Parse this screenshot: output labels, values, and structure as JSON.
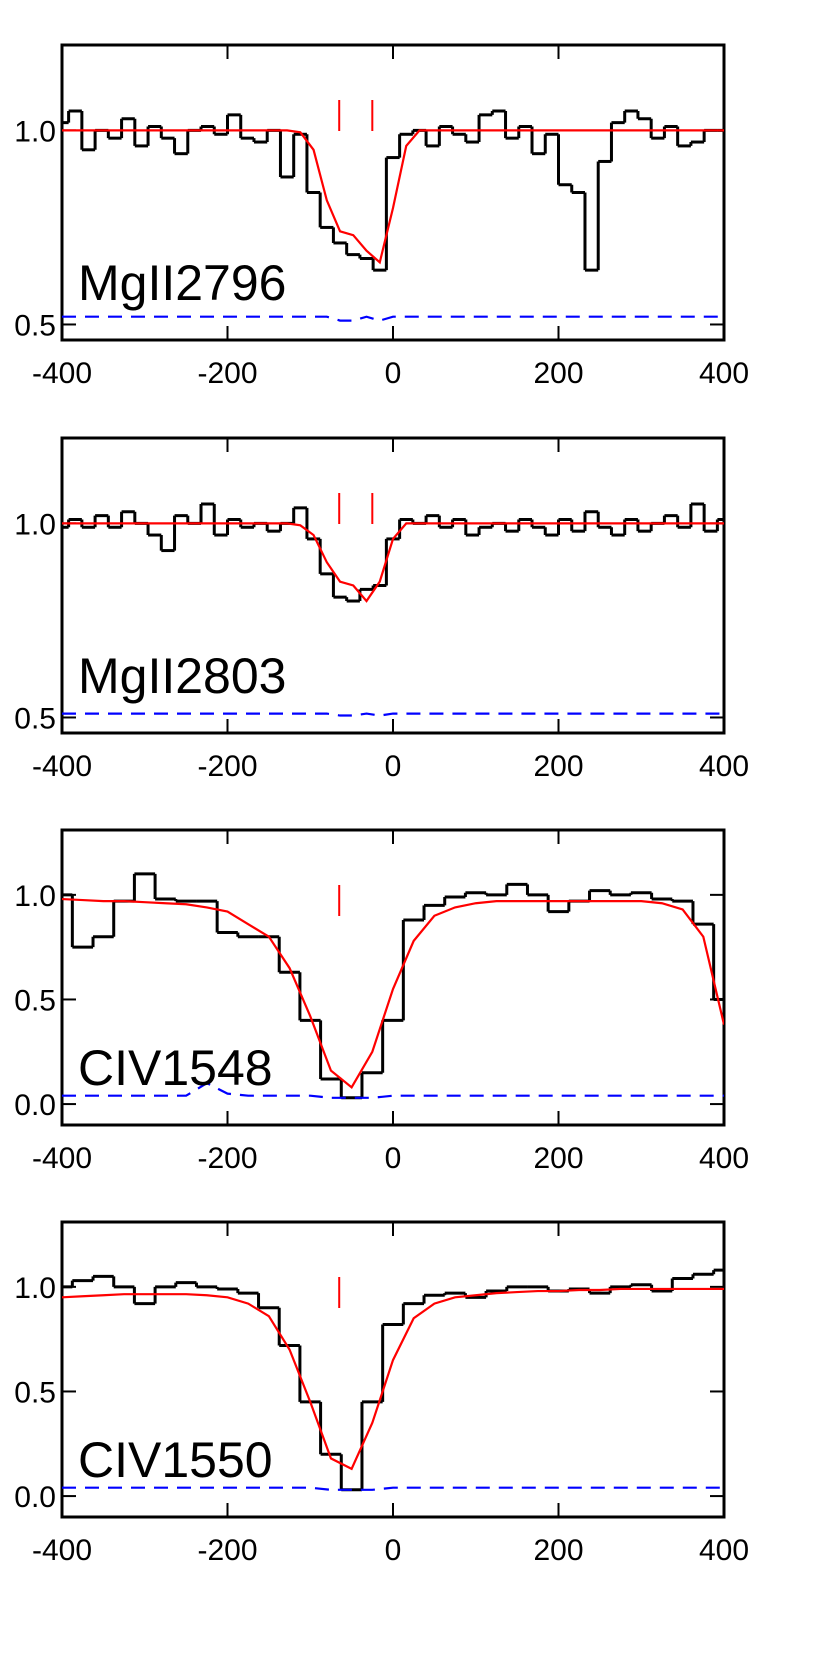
{
  "chart_data": [
    {
      "type": "line",
      "label": "MgII2796",
      "x": [
        -400,
        -384,
        -368,
        -352,
        -336,
        -320,
        -304,
        -288,
        -272,
        -256,
        -240,
        -224,
        -208,
        -192,
        -176,
        -160,
        -144,
        -128,
        -112,
        -96,
        -80,
        -64,
        -48,
        -32,
        -16,
        0,
        16,
        32,
        48,
        64,
        80,
        96,
        112,
        128,
        144,
        160,
        176,
        192,
        208,
        224,
        240,
        256,
        272,
        288,
        304,
        320,
        336,
        352,
        368,
        384,
        400
      ],
      "series": [
        {
          "color": "#000000",
          "style": "steps",
          "values": [
            1.02,
            1.05,
            0.95,
            1.0,
            0.98,
            1.03,
            0.96,
            1.01,
            0.98,
            0.94,
            1.0,
            1.01,
            0.99,
            1.04,
            0.98,
            0.97,
            1.0,
            0.88,
            0.99,
            0.84,
            0.75,
            0.71,
            0.68,
            0.67,
            0.64,
            0.93,
            0.99,
            1.0,
            0.96,
            1.01,
            0.99,
            0.97,
            1.04,
            1.05,
            0.98,
            1.01,
            0.94,
            0.99,
            0.86,
            0.84,
            0.64,
            0.92,
            1.02,
            1.05,
            1.03,
            0.98,
            1.01,
            0.96,
            0.97,
            1.0,
            1.0
          ]
        },
        {
          "color": "#ff0000",
          "style": "solid",
          "values": [
            1.0,
            1.0,
            1.0,
            1.0,
            1.0,
            1.0,
            1.0,
            1.0,
            1.0,
            1.0,
            1.0,
            1.0,
            1.0,
            1.0,
            1.0,
            1.0,
            1.0,
            1.0,
            0.995,
            0.95,
            0.82,
            0.74,
            0.73,
            0.69,
            0.66,
            0.8,
            0.96,
            1.0,
            1.0,
            1.0,
            1.0,
            1.0,
            1.0,
            1.0,
            1.0,
            1.0,
            1.0,
            1.0,
            1.0,
            1.0,
            1.0,
            1.0,
            1.0,
            1.0,
            1.0,
            1.0,
            1.0,
            1.0,
            1.0,
            1.0,
            1.0
          ]
        },
        {
          "color": "#0000ff",
          "style": "dashed",
          "values": [
            0.52,
            0.52,
            0.52,
            0.52,
            0.52,
            0.52,
            0.52,
            0.52,
            0.52,
            0.52,
            0.52,
            0.52,
            0.52,
            0.52,
            0.52,
            0.52,
            0.52,
            0.52,
            0.52,
            0.52,
            0.52,
            0.51,
            0.51,
            0.52,
            0.51,
            0.52,
            0.52,
            0.52,
            0.52,
            0.52,
            0.52,
            0.52,
            0.52,
            0.52,
            0.52,
            0.52,
            0.52,
            0.52,
            0.52,
            0.52,
            0.52,
            0.52,
            0.52,
            0.52,
            0.52,
            0.52,
            0.52,
            0.52,
            0.52,
            0.52,
            0.52
          ]
        }
      ],
      "components": [
        -65,
        -25
      ],
      "xlim": [
        -400,
        400
      ],
      "xticks": [
        -400,
        -200,
        0,
        200,
        400
      ],
      "ylim": [
        0.46,
        1.22
      ],
      "yticks": [
        0.5,
        {
          "value": 1.0,
          "label": "1.0"
        }
      ]
    },
    {
      "type": "line",
      "label": "MgII2803",
      "x": [
        -400,
        -384,
        -368,
        -352,
        -336,
        -320,
        -304,
        -288,
        -272,
        -256,
        -240,
        -224,
        -208,
        -192,
        -176,
        -160,
        -144,
        -128,
        -112,
        -96,
        -80,
        -64,
        -48,
        -32,
        -16,
        0,
        16,
        32,
        48,
        64,
        80,
        96,
        112,
        128,
        144,
        160,
        176,
        192,
        208,
        224,
        240,
        256,
        272,
        288,
        304,
        320,
        336,
        352,
        368,
        384,
        400
      ],
      "series": [
        {
          "color": "#000000",
          "style": "steps",
          "values": [
            0.99,
            1.01,
            0.99,
            1.02,
            0.99,
            1.03,
            1.0,
            0.97,
            0.93,
            1.02,
            1.0,
            1.05,
            0.97,
            1.01,
            0.99,
            1.0,
            0.98,
            1.0,
            1.04,
            0.96,
            0.87,
            0.81,
            0.8,
            0.83,
            0.84,
            0.96,
            1.01,
            1.0,
            1.02,
            0.99,
            1.01,
            0.97,
            0.99,
            1.0,
            0.98,
            1.01,
            0.99,
            0.97,
            1.01,
            0.98,
            1.03,
            0.99,
            0.97,
            1.01,
            0.98,
            1.0,
            1.02,
            0.99,
            1.05,
            0.98,
            1.01
          ]
        },
        {
          "color": "#ff0000",
          "style": "solid",
          "values": [
            1.0,
            1.0,
            1.0,
            1.0,
            1.0,
            1.0,
            1.0,
            1.0,
            1.0,
            1.0,
            1.0,
            1.0,
            1.0,
            1.0,
            1.0,
            1.0,
            1.0,
            1.0,
            0.995,
            0.97,
            0.9,
            0.85,
            0.84,
            0.8,
            0.85,
            0.96,
            1.0,
            1.0,
            1.0,
            1.0,
            1.0,
            1.0,
            1.0,
            1.0,
            1.0,
            1.0,
            1.0,
            1.0,
            1.0,
            1.0,
            1.0,
            1.0,
            1.0,
            1.0,
            1.0,
            1.0,
            1.0,
            1.0,
            1.0,
            1.0,
            1.0
          ]
        },
        {
          "color": "#0000ff",
          "style": "dashed",
          "values": [
            0.51,
            0.51,
            0.51,
            0.51,
            0.51,
            0.51,
            0.51,
            0.51,
            0.51,
            0.51,
            0.51,
            0.51,
            0.51,
            0.51,
            0.51,
            0.51,
            0.51,
            0.51,
            0.51,
            0.51,
            0.51,
            0.505,
            0.505,
            0.51,
            0.505,
            0.51,
            0.51,
            0.51,
            0.51,
            0.51,
            0.51,
            0.51,
            0.51,
            0.51,
            0.51,
            0.51,
            0.51,
            0.51,
            0.51,
            0.51,
            0.51,
            0.51,
            0.51,
            0.51,
            0.51,
            0.51,
            0.51,
            0.51,
            0.51,
            0.51,
            0.51
          ]
        }
      ],
      "components": [
        -65,
        -25
      ],
      "xlim": [
        -400,
        400
      ],
      "xticks": [
        -400,
        -200,
        0,
        200,
        400
      ],
      "ylim": [
        0.46,
        1.22
      ],
      "yticks": [
        0.5,
        {
          "value": 1.0,
          "label": "1.0"
        }
      ]
    },
    {
      "type": "line",
      "label": "CIV1548",
      "x": [
        -400,
        -375,
        -350,
        -325,
        -300,
        -275,
        -250,
        -225,
        -200,
        -175,
        -150,
        -125,
        -100,
        -75,
        -50,
        -25,
        0,
        25,
        50,
        75,
        100,
        125,
        150,
        175,
        200,
        225,
        250,
        275,
        300,
        325,
        350,
        375,
        400
      ],
      "series": [
        {
          "color": "#000000",
          "style": "steps",
          "values": [
            1.0,
            0.75,
            0.8,
            0.97,
            1.1,
            0.98,
            0.97,
            0.97,
            0.82,
            0.8,
            0.8,
            0.63,
            0.4,
            0.12,
            0.03,
            0.15,
            0.4,
            0.88,
            0.95,
            0.99,
            1.01,
            1.0,
            1.05,
            1.0,
            0.92,
            0.97,
            1.02,
            1.0,
            1.01,
            0.98,
            0.97,
            0.86,
            0.5
          ]
        },
        {
          "color": "#ff0000",
          "style": "solid",
          "values": [
            0.98,
            0.975,
            0.97,
            0.97,
            0.965,
            0.96,
            0.955,
            0.94,
            0.92,
            0.86,
            0.8,
            0.65,
            0.42,
            0.16,
            0.08,
            0.25,
            0.55,
            0.78,
            0.9,
            0.94,
            0.96,
            0.97,
            0.97,
            0.97,
            0.97,
            0.97,
            0.97,
            0.97,
            0.97,
            0.96,
            0.93,
            0.8,
            0.38
          ]
        },
        {
          "color": "#0000ff",
          "style": "dashed",
          "values": [
            0.04,
            0.04,
            0.04,
            0.04,
            0.04,
            0.04,
            0.04,
            0.1,
            0.05,
            0.04,
            0.04,
            0.04,
            0.04,
            0.03,
            0.03,
            0.03,
            0.04,
            0.04,
            0.04,
            0.04,
            0.04,
            0.04,
            0.04,
            0.04,
            0.04,
            0.04,
            0.04,
            0.04,
            0.04,
            0.04,
            0.04,
            0.04,
            0.04
          ]
        }
      ],
      "components": [
        -65
      ],
      "xlim": [
        -400,
        400
      ],
      "xticks": [
        -400,
        -200,
        0,
        200,
        400
      ],
      "ylim": [
        -0.1,
        1.31
      ],
      "yticks": [
        {
          "value": 0,
          "label": "0.0"
        },
        0.5,
        {
          "value": 1.0,
          "label": "1.0"
        }
      ]
    },
    {
      "type": "line",
      "label": "CIV1550",
      "x": [
        -400,
        -375,
        -350,
        -325,
        -300,
        -275,
        -250,
        -225,
        -200,
        -175,
        -150,
        -125,
        -100,
        -75,
        -50,
        -25,
        0,
        25,
        50,
        75,
        100,
        125,
        150,
        175,
        200,
        225,
        250,
        275,
        300,
        325,
        350,
        375,
        400
      ],
      "series": [
        {
          "color": "#000000",
          "style": "steps",
          "values": [
            1.0,
            1.03,
            1.05,
            1.0,
            0.92,
            1.0,
            1.02,
            1.0,
            0.99,
            0.97,
            0.9,
            0.72,
            0.45,
            0.2,
            0.03,
            0.45,
            0.82,
            0.92,
            0.96,
            0.97,
            0.95,
            0.98,
            1.0,
            1.0,
            0.98,
            0.99,
            0.97,
            1.0,
            1.01,
            0.98,
            1.04,
            1.06,
            1.08
          ]
        },
        {
          "color": "#ff0000",
          "style": "solid",
          "values": [
            0.95,
            0.955,
            0.96,
            0.965,
            0.965,
            0.965,
            0.965,
            0.96,
            0.95,
            0.92,
            0.86,
            0.7,
            0.45,
            0.18,
            0.13,
            0.35,
            0.65,
            0.85,
            0.92,
            0.95,
            0.96,
            0.97,
            0.975,
            0.98,
            0.98,
            0.985,
            0.985,
            0.99,
            0.99,
            0.99,
            0.99,
            0.99,
            0.99
          ]
        },
        {
          "color": "#0000ff",
          "style": "dashed",
          "values": [
            0.04,
            0.04,
            0.04,
            0.04,
            0.04,
            0.04,
            0.04,
            0.04,
            0.04,
            0.04,
            0.04,
            0.04,
            0.04,
            0.03,
            0.03,
            0.03,
            0.04,
            0.04,
            0.04,
            0.04,
            0.04,
            0.04,
            0.04,
            0.04,
            0.04,
            0.04,
            0.04,
            0.04,
            0.04,
            0.04,
            0.04,
            0.04,
            0.04
          ]
        }
      ],
      "components": [
        -65
      ],
      "xlim": [
        -400,
        400
      ],
      "xticks": [
        -400,
        -200,
        0,
        200,
        400
      ],
      "ylim": [
        -0.1,
        1.31
      ],
      "yticks": [
        {
          "value": 0,
          "label": "0.0"
        },
        0.5,
        {
          "value": 1.0,
          "label": "1.0"
        }
      ]
    }
  ]
}
